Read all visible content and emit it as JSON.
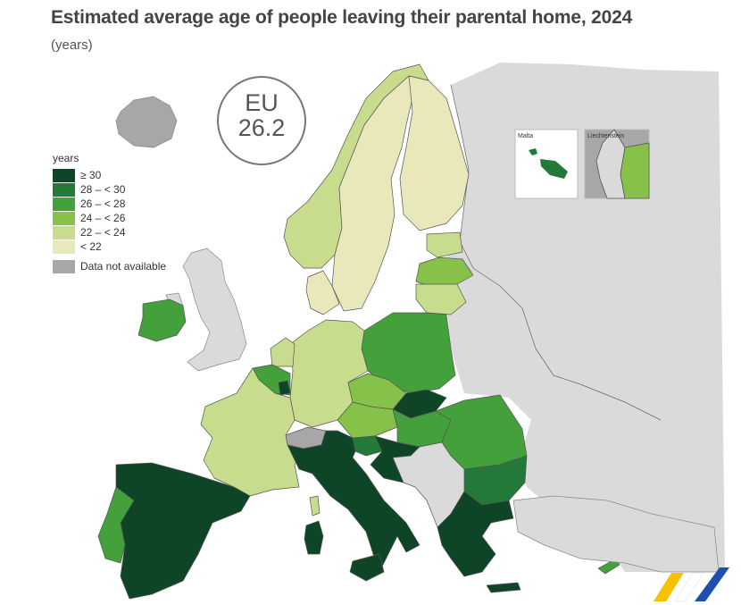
{
  "title": "Estimated average age of people leaving their parental home, 2024",
  "subtitle": "(years)",
  "eu_badge": {
    "label": "EU",
    "value": "26.2"
  },
  "legend": {
    "title": "years",
    "classes": [
      {
        "label": "≥ 30",
        "color": "#0d4526"
      },
      {
        "label": "28 – < 30",
        "color": "#237a38"
      },
      {
        "label": "26 – < 28",
        "color": "#43a03b"
      },
      {
        "label": "24 – < 26",
        "color": "#86c24a"
      },
      {
        "label": "22 – < 24",
        "color": "#c8dc8e"
      },
      {
        "label": "< 22",
        "color": "#e9e8bb"
      }
    ],
    "na_label": "Data not available",
    "na_color": "#a7a7a7"
  },
  "insets": {
    "malta": "Malta",
    "liechtenstein": "Liechtenstein"
  },
  "colors": {
    "non_eu": "#dadada",
    "border": "#555555",
    "sea": "#ffffff"
  }
}
